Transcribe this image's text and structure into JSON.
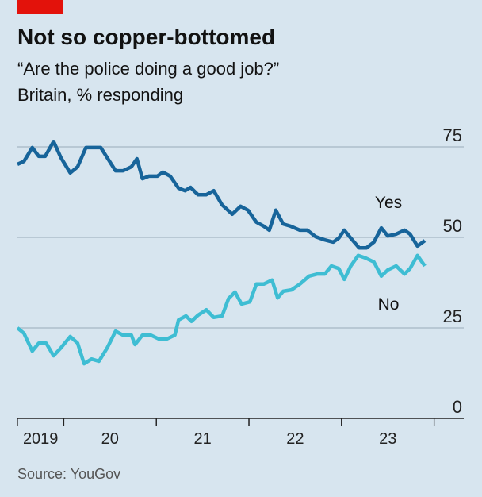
{
  "chart_data": {
    "type": "line",
    "title": "Not so copper-bottomed",
    "subtitle": "“Are the police doing a good job?”",
    "note": "Britain, % responding",
    "source": "Source: YouGov",
    "xlim": [
      2019.5,
      2024.32
    ],
    "xticks": [
      {
        "value": 2019,
        "label": "2019"
      },
      {
        "value": 2020,
        "label": "20"
      },
      {
        "value": 2021,
        "label": "21"
      },
      {
        "value": 2022,
        "label": "22"
      },
      {
        "value": 2023,
        "label": "23"
      }
    ],
    "ylim": [
      0,
      75
    ],
    "yticks": [
      0,
      25,
      50,
      75
    ],
    "grid": true,
    "series": [
      {
        "name": "Yes",
        "color": "#17649a",
        "x": [
          2019.5,
          2019.57,
          2019.66,
          2019.73,
          2019.8,
          2019.89,
          2019.97,
          2020.07,
          2020.15,
          2020.24,
          2020.34,
          2020.4,
          2020.47,
          2020.56,
          2020.64,
          2020.73,
          2020.79,
          2020.85,
          2020.92,
          2021.01,
          2021.07,
          2021.15,
          2021.24,
          2021.31,
          2021.37,
          2021.45,
          2021.54,
          2021.62,
          2021.71,
          2021.82,
          2021.91,
          2021.99,
          2022.08,
          2022.16,
          2022.22,
          2022.29,
          2022.37,
          2022.45,
          2022.55,
          2022.63,
          2022.72,
          2022.82,
          2022.91,
          2022.97,
          2023.03,
          2023.1,
          2023.19,
          2023.27,
          2023.35,
          2023.43,
          2023.5,
          2023.59,
          2023.68,
          2023.74,
          2023.82,
          2023.9
        ],
        "values": [
          70.2,
          71,
          74.8,
          72.4,
          72.4,
          76.5,
          72,
          67.8,
          69.5,
          74.8,
          74.8,
          74.8,
          72,
          68.4,
          68.4,
          69.5,
          71.7,
          66.2,
          66.9,
          66.9,
          68,
          66.9,
          63.6,
          62.9,
          63.8,
          61.8,
          61.8,
          62.9,
          59,
          56.4,
          58.6,
          57.5,
          54.2,
          53.1,
          52,
          57.5,
          53.7,
          53.1,
          52,
          52,
          50.2,
          49.3,
          48.7,
          49.8,
          52,
          49.8,
          47.1,
          47.1,
          48.7,
          52.6,
          50.4,
          50.9,
          52,
          50.9,
          47.6,
          49.1
        ]
      },
      {
        "name": "No",
        "color": "#3ebdd3",
        "x": [
          2019.5,
          2019.57,
          2019.66,
          2019.73,
          2019.81,
          2019.89,
          2019.97,
          2020.07,
          2020.15,
          2020.22,
          2020.3,
          2020.38,
          2020.47,
          2020.56,
          2020.64,
          2020.73,
          2020.77,
          2020.85,
          2020.94,
          2021.03,
          2021.11,
          2021.2,
          2021.24,
          2021.32,
          2021.38,
          2021.45,
          2021.54,
          2021.62,
          2021.71,
          2021.78,
          2021.85,
          2021.92,
          2022.01,
          2022.08,
          2022.16,
          2022.25,
          2022.31,
          2022.37,
          2022.46,
          2022.55,
          2022.65,
          2022.74,
          2022.82,
          2022.89,
          2022.97,
          2023.03,
          2023.1,
          2023.18,
          2023.26,
          2023.35,
          2023.43,
          2023.5,
          2023.59,
          2023.68,
          2023.74,
          2023.82,
          2023.9
        ],
        "values": [
          25,
          23.5,
          18.6,
          20.8,
          20.8,
          17.3,
          19.5,
          22.6,
          20.8,
          15.1,
          16.4,
          15.8,
          19.5,
          24.1,
          23,
          23,
          20.4,
          23,
          23,
          21.9,
          21.9,
          23,
          27.2,
          28.3,
          26.8,
          28.5,
          30,
          27.9,
          28.3,
          33.1,
          34.9,
          31.6,
          32.2,
          37.1,
          37.1,
          38.2,
          33.3,
          35.1,
          35.5,
          37.1,
          39.3,
          39.9,
          39.9,
          42.1,
          41.4,
          38.4,
          42.1,
          45,
          44.3,
          43.2,
          39.3,
          41,
          42.1,
          39.9,
          41.4,
          45,
          42.1
        ]
      }
    ]
  }
}
